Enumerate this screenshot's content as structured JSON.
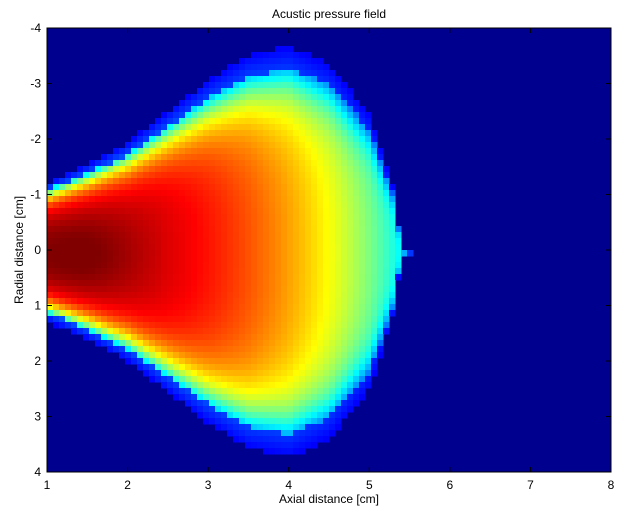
{
  "chart_data": {
    "type": "heatmap",
    "title": "Acustic pressure field",
    "xlabel": "Axial distance [cm]",
    "ylabel": "Radial distance [cm]",
    "xlim": [
      1,
      8
    ],
    "ylim": [
      -4,
      4
    ],
    "y_axis_reversed": true,
    "x_ticks": [
      "1",
      "2",
      "3",
      "4",
      "5",
      "6",
      "7",
      "8"
    ],
    "y_ticks": [
      "-4",
      "-3",
      "-2",
      "-1",
      "0",
      "1",
      "2",
      "3",
      "4"
    ],
    "colormap": "jet",
    "background_color": "#00008f",
    "grid": false,
    "legend": "none",
    "field_model": {
      "peak_location_cm": [
        1.4,
        0.1
      ],
      "source_halfwidth_cm": 1.05,
      "outer_boundary_axial_cm": [
        [
          1.0,
          1.1
        ],
        [
          1.5,
          1.4
        ],
        [
          2.0,
          1.75
        ],
        [
          2.5,
          2.25
        ],
        [
          3.0,
          2.75
        ],
        [
          3.5,
          3.15
        ],
        [
          4.0,
          3.3
        ],
        [
          4.5,
          3.0
        ],
        [
          5.0,
          2.2
        ],
        [
          5.3,
          1.0
        ],
        [
          5.4,
          0.0
        ]
      ]
    }
  }
}
